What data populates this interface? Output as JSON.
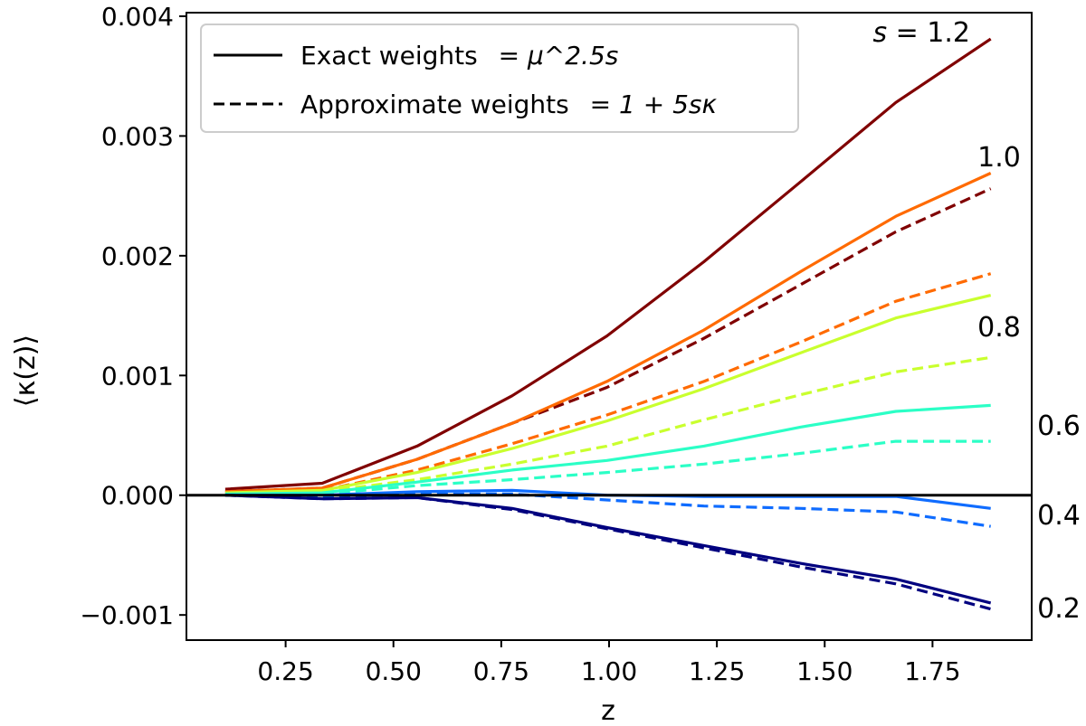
{
  "chart_data": {
    "type": "line",
    "xlabel": "z",
    "ylabel": "⟨κ(z)⟩",
    "xlim": [
      0.02,
      1.98
    ],
    "ylim": [
      -0.00121,
      0.00403
    ],
    "xticks": [
      "0.25",
      "0.50",
      "0.75",
      "1.00",
      "1.25",
      "1.50",
      "1.75"
    ],
    "yticks": [
      "−0.001",
      "0.000",
      "0.001",
      "0.002",
      "0.003",
      "0.004"
    ],
    "x": [
      0.11,
      0.335,
      0.555,
      0.775,
      0.995,
      1.22,
      1.445,
      1.665,
      1.885
    ],
    "legend": {
      "position": "top-left",
      "exact": "Exact weights",
      "exact_formula": "= μ^2.5s",
      "approx": "Approximate weights",
      "approx_formula": "= 1 + 5sκ"
    },
    "zero_line": true,
    "series": [
      {
        "s": "1.2",
        "label": "s = 1.2",
        "color": "#800000",
        "style": "solid",
        "values": [
          5e-05,
          0.0001,
          0.00041,
          0.00083,
          0.00133,
          0.00195,
          0.00262,
          0.00328,
          0.00381
        ]
      },
      {
        "s": "1.2",
        "color": "#800000",
        "style": "dashed",
        "values": [
          3e-05,
          6e-05,
          0.0003,
          0.0006,
          0.0009,
          0.00131,
          0.00176,
          0.0022,
          0.00256
        ]
      },
      {
        "s": "1.0",
        "label": "1.0",
        "color": "#ff6a00",
        "style": "solid",
        "values": [
          3e-05,
          6e-05,
          0.0003,
          0.0006,
          0.00095,
          0.00138,
          0.00187,
          0.00233,
          0.00269
        ]
      },
      {
        "s": "1.0",
        "color": "#ff6a00",
        "style": "dashed",
        "values": [
          2e-05,
          4e-05,
          0.00021,
          0.00043,
          0.00067,
          0.00095,
          0.00128,
          0.00162,
          0.00185
        ]
      },
      {
        "s": "0.8",
        "label": "0.8",
        "color": "#c9ff2e",
        "style": "solid",
        "values": [
          2e-05,
          4e-05,
          0.00019,
          0.00039,
          0.00062,
          0.00089,
          0.00119,
          0.00148,
          0.00167
        ]
      },
      {
        "s": "0.8",
        "color": "#c9ff2e",
        "style": "dashed",
        "values": [
          1e-05,
          3e-05,
          0.00013,
          0.00026,
          0.00041,
          0.00063,
          0.00084,
          0.00103,
          0.00115
        ]
      },
      {
        "s": "0.6",
        "label": "0.6",
        "color": "#2bffc6",
        "style": "solid",
        "values": [
          1e-05,
          2e-05,
          0.00011,
          0.00021,
          0.00029,
          0.00041,
          0.00057,
          0.0007,
          0.00075
        ]
      },
      {
        "s": "0.6",
        "color": "#2bffc6",
        "style": "dashed",
        "values": [
          0.0,
          1e-05,
          8e-05,
          0.00013,
          0.00019,
          0.00026,
          0.00035,
          0.00045,
          0.00045
        ]
      },
      {
        "s": "0.4",
        "label": "0.4",
        "color": "#0f6cff",
        "style": "solid",
        "values": [
          0.0,
          0.0,
          3e-05,
          4e-05,
          0.0,
          -1e-05,
          -1e-05,
          -1e-05,
          -0.00011
        ]
      },
      {
        "s": "0.4",
        "color": "#0f6cff",
        "style": "dashed",
        "values": [
          0.0,
          -1e-05,
          1e-05,
          1e-05,
          -4e-05,
          -9e-05,
          -0.00011,
          -0.00014,
          -0.00026
        ]
      },
      {
        "s": "0.2",
        "label": "0.2",
        "color": "#00007f",
        "style": "solid",
        "values": [
          0.0,
          -3e-05,
          -2e-05,
          -0.00011,
          -0.00027,
          -0.00042,
          -0.00057,
          -0.0007,
          -0.0009
        ]
      },
      {
        "s": "0.2",
        "color": "#00007f",
        "style": "dashed",
        "values": [
          0.0,
          -3e-05,
          -2e-05,
          -0.00012,
          -0.00028,
          -0.00044,
          -0.0006,
          -0.00074,
          -0.00095
        ]
      }
    ]
  }
}
